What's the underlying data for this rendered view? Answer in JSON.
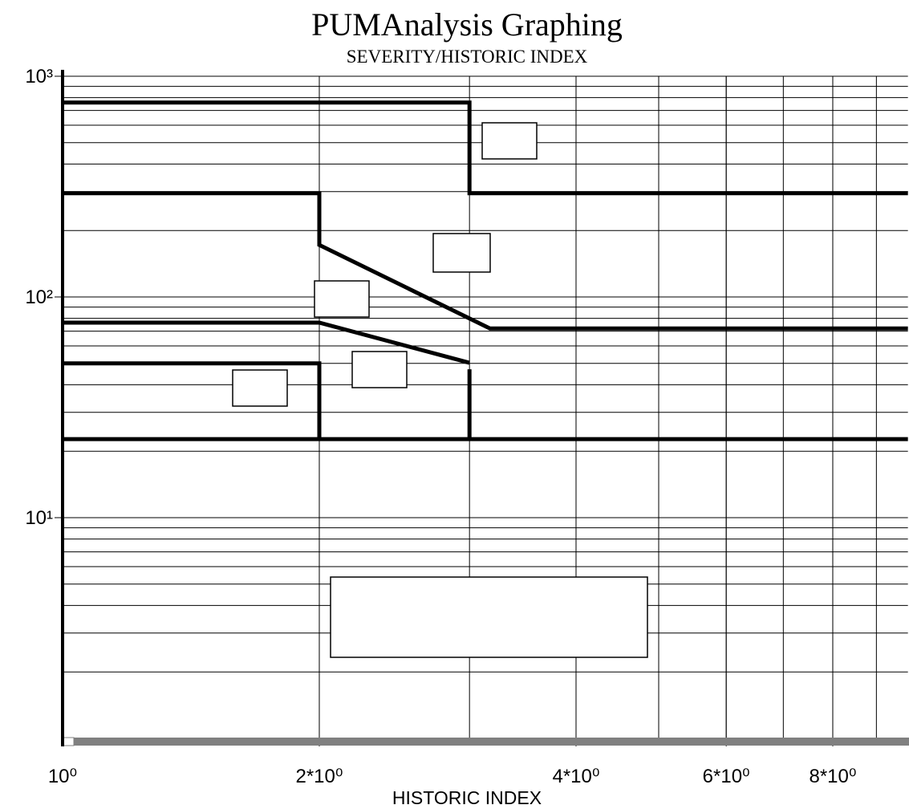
{
  "chart_data": {
    "type": "line",
    "title": "PUMAnalysis Graphing",
    "subtitle": "SEVERITY/HISTORIC INDEX",
    "x_label": "HISTORIC INDEX",
    "log_x": true,
    "log_y": true,
    "grid": true,
    "xlim": [
      1,
      9.8
    ],
    "ylim": [
      1,
      1000
    ],
    "xticks": [
      {
        "value": 1,
        "label": "10⁰"
      },
      {
        "value": 2,
        "label": "2*10⁰"
      },
      {
        "value": 4,
        "label": "4*10⁰"
      },
      {
        "value": 6,
        "label": "6*10⁰"
      },
      {
        "value": 8,
        "label": "8*10⁰"
      }
    ],
    "yticks": [
      {
        "value": 10,
        "label": "10¹"
      },
      {
        "value": 100,
        "label": "10²"
      },
      {
        "value": 1000,
        "label": "10³"
      }
    ],
    "xgrid": [
      2,
      3,
      4,
      5,
      6,
      7,
      8,
      9
    ],
    "ygrid": [
      2,
      3,
      4,
      5,
      6,
      7,
      8,
      9,
      20,
      30,
      40,
      50,
      60,
      70,
      80,
      90,
      200,
      300,
      400,
      500,
      600,
      700,
      800,
      900
    ],
    "series": [
      {
        "color": "#000000",
        "x": [
          1,
          3,
          3,
          9.8
        ],
        "values": [
          760,
          760,
          295,
          295
        ]
      },
      {
        "color": "#000000",
        "x": [
          1,
          2,
          2,
          3.17,
          9.8
        ],
        "values": [
          295,
          295,
          172,
          72,
          72
        ]
      },
      {
        "color": "#000000",
        "x": [
          1,
          2,
          3
        ],
        "values": [
          76.5,
          76.5,
          50.3
        ]
      },
      {
        "color": "#000000",
        "x": [
          1,
          2,
          2
        ],
        "values": [
          50,
          50,
          22.7
        ]
      },
      {
        "color": "#000000",
        "x": [
          3,
          3
        ],
        "values": [
          47,
          22.7
        ]
      },
      {
        "color": "#000000",
        "x": [
          1,
          9.8
        ],
        "values": [
          22.7,
          22.7
        ]
      }
    ]
  }
}
